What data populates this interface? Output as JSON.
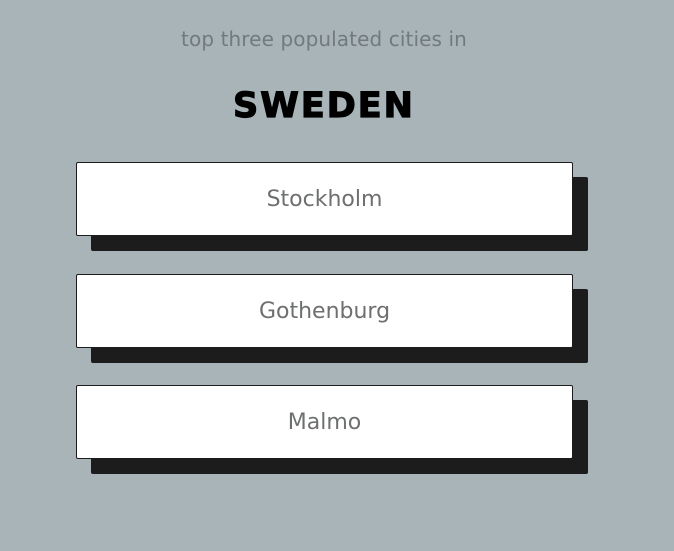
{
  "header": {
    "subtitle": "top three populated cities in",
    "country": "SWEDEN"
  },
  "cities": [
    {
      "label": "Stockholm"
    },
    {
      "label": "Gothenburg"
    },
    {
      "label": "Malmo"
    }
  ],
  "colors": {
    "background": "#a8b4b8",
    "card": "#ffffff",
    "shadow": "#1c1c1c",
    "subtitle_text": "#717a7d",
    "card_text": "#6d6f70"
  }
}
